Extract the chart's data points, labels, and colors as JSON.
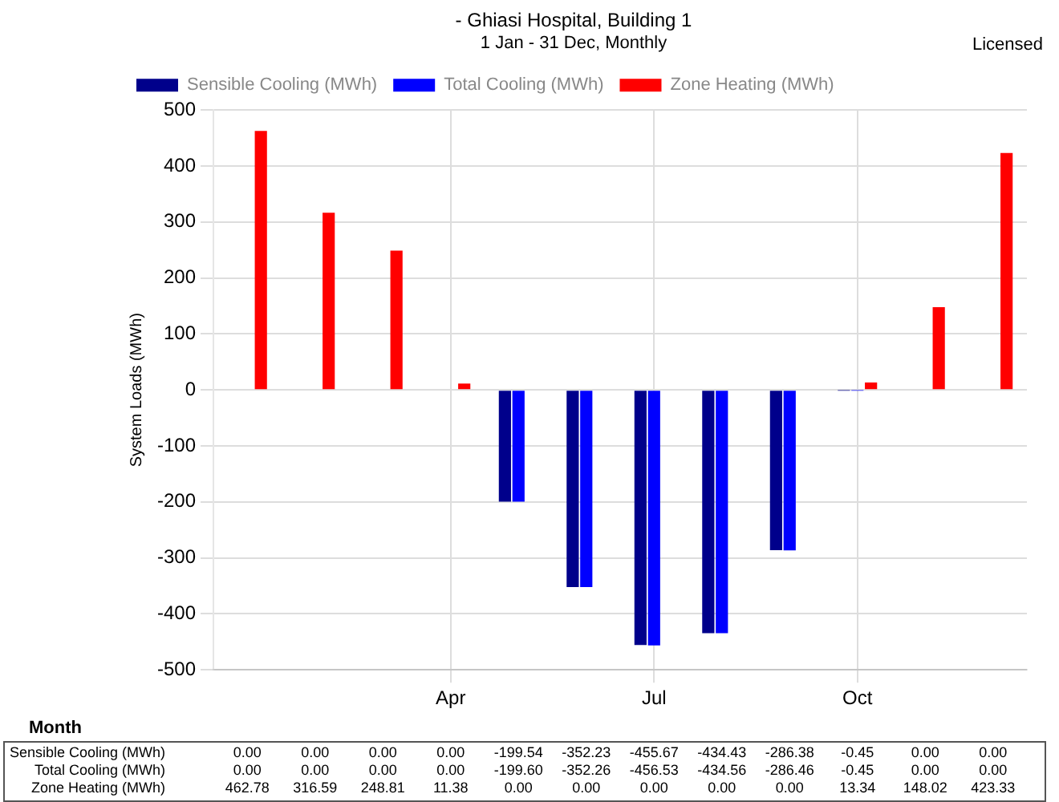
{
  "chart_data": {
    "type": "bar",
    "title": "- Ghiasi Hospital, Building 1",
    "subtitle": "1 Jan - 31 Dec, Monthly",
    "xlabel": "Month",
    "ylabel": "System Loads (MWh)",
    "annotations": [
      "Licensed"
    ],
    "categories": [
      null,
      null,
      null,
      "Apr",
      null,
      null,
      "Jul",
      null,
      null,
      "Oct",
      null,
      null
    ],
    "series": [
      {
        "name": "Sensible Cooling (MWh)",
        "color": "#00008b",
        "values": [
          0,
          0,
          0,
          0,
          -199.54,
          -352.23,
          -455.67,
          -434.43,
          -286.38,
          -0.45,
          0,
          0
        ],
        "value_labels": [
          "0.00",
          "0.00",
          "0.00",
          "0.00",
          "-199.54",
          "-352.23",
          "-455.67",
          "-434.43",
          "-286.38",
          "-0.45",
          "0.00",
          "0.00"
        ]
      },
      {
        "name": "Total Cooling (MWh)",
        "color": "#0000ff",
        "values": [
          0,
          0,
          0,
          0,
          -199.6,
          -352.26,
          -456.53,
          -434.56,
          -286.46,
          -0.45,
          0,
          0
        ],
        "value_labels": [
          "0.00",
          "0.00",
          "0.00",
          "0.00",
          "-199.60",
          "-352.26",
          "-456.53",
          "-434.56",
          "-286.46",
          "-0.45",
          "0.00",
          "0.00"
        ]
      },
      {
        "name": "Zone Heating (MWh)",
        "color": "#ff0000",
        "values": [
          462.78,
          316.59,
          248.81,
          11.38,
          0,
          0,
          0,
          0,
          0,
          13.34,
          148.02,
          423.33
        ],
        "value_labels": [
          "462.78",
          "316.59",
          "248.81",
          "11.38",
          "0.00",
          "0.00",
          "0.00",
          "0.00",
          "0.00",
          "13.34",
          "148.02",
          "423.33"
        ]
      }
    ],
    "ylim": [
      -500,
      500
    ],
    "yticks": [
      -500,
      -400,
      -300,
      -200,
      -100,
      0,
      100,
      200,
      300,
      400,
      500
    ],
    "grid": true,
    "legend": "top"
  }
}
